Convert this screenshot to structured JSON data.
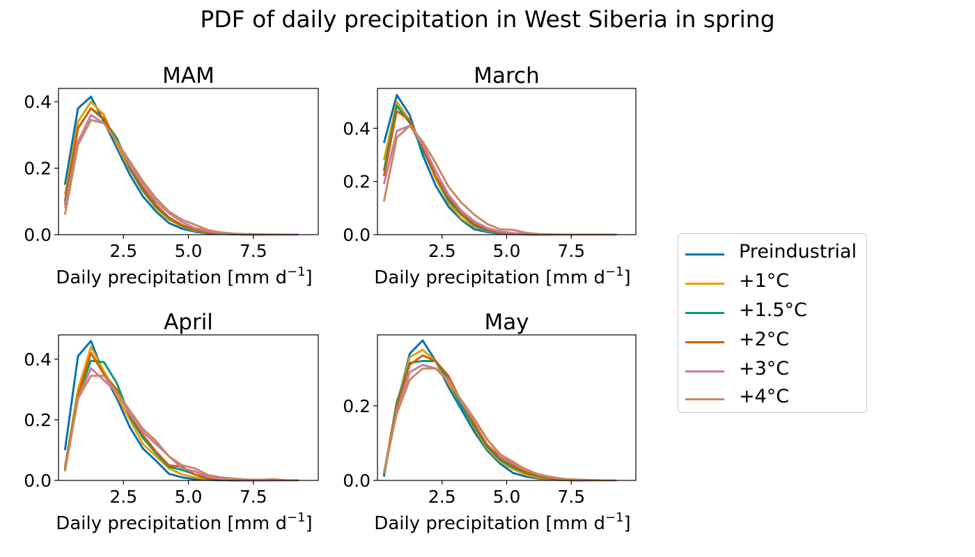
{
  "suptitle": "PDF of daily precipitation in West Siberia in spring",
  "legend": {
    "items": [
      {
        "label": "Preindustrial",
        "color": "#0072b2"
      },
      {
        "label": "+1°C",
        "color": "#e69f00"
      },
      {
        "label": "+1.5°C",
        "color": "#009e73"
      },
      {
        "label": "+2°C",
        "color": "#d55e00"
      },
      {
        "label": "+3°C",
        "color": "#cc79a7"
      },
      {
        "label": "+4°C",
        "color": "#c8895e"
      }
    ]
  },
  "chart_data": [
    {
      "type": "line",
      "title": "MAM",
      "xlabel": "Daily precipitation [mm d",
      "xlabel_sup": "−1",
      "xlabel_end": "]",
      "xlim": [
        0,
        10
      ],
      "ylim": [
        0,
        0.44
      ],
      "xticks": [
        2.5,
        5.0,
        7.5
      ],
      "xtick_labels": [
        "2.5",
        "5.0",
        "7.5"
      ],
      "yticks": [
        0,
        0.2,
        0.4
      ],
      "ytick_labels": [
        "0.0",
        "0.2",
        "0.4"
      ],
      "x": [
        0.25,
        0.75,
        1.25,
        1.75,
        2.25,
        2.75,
        3.25,
        3.75,
        4.25,
        4.75,
        5.25,
        5.75,
        6.25,
        6.75,
        7.25,
        7.75,
        8.25,
        8.75,
        9.25
      ],
      "series": [
        {
          "name": "Preindustrial",
          "values": [
            0.15,
            0.38,
            0.415,
            0.34,
            0.26,
            0.18,
            0.115,
            0.07,
            0.035,
            0.018,
            0.009,
            0.004,
            0.002,
            0.001,
            0.0005,
            0.0002,
            0.0001,
            0.0,
            0.0
          ]
        },
        {
          "name": "+1°C",
          "values": [
            0.12,
            0.34,
            0.4,
            0.36,
            0.27,
            0.195,
            0.13,
            0.08,
            0.045,
            0.025,
            0.012,
            0.006,
            0.003,
            0.0015,
            0.0007,
            0.0003,
            0.0001,
            0.0,
            0.0
          ]
        },
        {
          "name": "+1.5°C",
          "values": [
            0.1,
            0.32,
            0.38,
            0.345,
            0.29,
            0.2,
            0.135,
            0.085,
            0.05,
            0.027,
            0.014,
            0.007,
            0.003,
            0.0015,
            0.0007,
            0.0003,
            0.0001,
            0.0,
            0.0
          ]
        },
        {
          "name": "+2°C",
          "values": [
            0.09,
            0.32,
            0.38,
            0.35,
            0.28,
            0.205,
            0.14,
            0.09,
            0.052,
            0.029,
            0.015,
            0.008,
            0.004,
            0.002,
            0.0008,
            0.0003,
            0.0001,
            0.0,
            0.0
          ]
        },
        {
          "name": "+3°C",
          "values": [
            0.08,
            0.28,
            0.36,
            0.335,
            0.28,
            0.21,
            0.15,
            0.1,
            0.065,
            0.038,
            0.02,
            0.011,
            0.005,
            0.002,
            0.001,
            0.0004,
            0.0002,
            0.0,
            0.0
          ]
        },
        {
          "name": "+4°C",
          "values": [
            0.06,
            0.27,
            0.345,
            0.335,
            0.28,
            0.22,
            0.16,
            0.11,
            0.07,
            0.045,
            0.03,
            0.014,
            0.007,
            0.003,
            0.0015,
            0.0006,
            0.0002,
            0.0001,
            0.0
          ]
        }
      ]
    },
    {
      "type": "line",
      "title": "March",
      "xlabel": "Daily precipitation [mm d",
      "xlabel_sup": "−1",
      "xlabel_end": "]",
      "xlim": [
        0,
        10
      ],
      "ylim": [
        0,
        0.55
      ],
      "xticks": [
        2.5,
        5.0,
        7.5
      ],
      "xtick_labels": [
        "2.5",
        "5.0",
        "7.5"
      ],
      "yticks": [
        0,
        0.2,
        0.4
      ],
      "ytick_labels": [
        "0.0",
        "0.2",
        "0.4"
      ],
      "x": [
        0.25,
        0.75,
        1.25,
        1.75,
        2.25,
        2.75,
        3.25,
        3.75,
        4.25,
        4.75,
        5.25,
        5.75,
        6.25,
        6.75,
        7.25,
        7.75,
        8.25,
        8.75,
        9.25
      ],
      "series": [
        {
          "name": "Preindustrial",
          "values": [
            0.345,
            0.525,
            0.45,
            0.3,
            0.185,
            0.105,
            0.055,
            0.02,
            0.01,
            0.004,
            0.002,
            0.001,
            0.0,
            0.0,
            0.0,
            0.0,
            0.0,
            0.0,
            0.0
          ]
        },
        {
          "name": "+1°C",
          "values": [
            0.28,
            0.5,
            0.43,
            0.33,
            0.21,
            0.12,
            0.06,
            0.03,
            0.014,
            0.006,
            0.003,
            0.001,
            0.0,
            0.0,
            0.0,
            0.0,
            0.0,
            0.0,
            0.0
          ]
        },
        {
          "name": "+1.5°C",
          "values": [
            0.24,
            0.485,
            0.42,
            0.32,
            0.22,
            0.13,
            0.075,
            0.035,
            0.016,
            0.007,
            0.003,
            0.001,
            0.0,
            0.0,
            0.0,
            0.0,
            0.0,
            0.0,
            0.0
          ]
        },
        {
          "name": "+2°C",
          "values": [
            0.22,
            0.465,
            0.43,
            0.33,
            0.22,
            0.14,
            0.08,
            0.04,
            0.02,
            0.009,
            0.004,
            0.002,
            0.0005,
            0.0,
            0.0,
            0.0,
            0.0,
            0.0,
            0.0
          ]
        },
        {
          "name": "+3°C",
          "values": [
            0.19,
            0.39,
            0.41,
            0.34,
            0.24,
            0.15,
            0.09,
            0.05,
            0.025,
            0.012,
            0.006,
            0.003,
            0.001,
            0.0,
            0.0,
            0.0,
            0.0,
            0.0,
            0.0
          ]
        },
        {
          "name": "+4°C",
          "values": [
            0.125,
            0.365,
            0.41,
            0.35,
            0.27,
            0.18,
            0.12,
            0.075,
            0.04,
            0.02,
            0.018,
            0.007,
            0.002,
            0.001,
            0.0,
            0.0,
            0.0,
            0.0,
            0.0
          ]
        }
      ]
    },
    {
      "type": "line",
      "title": "April",
      "xlabel": "Daily precipitation [mm d",
      "xlabel_sup": "−1",
      "xlabel_end": "]",
      "xlim": [
        0,
        10
      ],
      "ylim": [
        0,
        0.48
      ],
      "xticks": [
        2.5,
        5.0,
        7.5
      ],
      "xtick_labels": [
        "2.5",
        "5.0",
        "7.5"
      ],
      "yticks": [
        0,
        0.2,
        0.4
      ],
      "ytick_labels": [
        "0.0",
        "0.2",
        "0.4"
      ],
      "x": [
        0.25,
        0.75,
        1.25,
        1.75,
        2.25,
        2.75,
        3.25,
        3.75,
        4.25,
        4.75,
        5.25,
        5.75,
        6.25,
        6.75,
        7.25,
        7.75,
        8.25,
        8.75,
        9.25
      ],
      "series": [
        {
          "name": "Preindustrial",
          "values": [
            0.1,
            0.41,
            0.46,
            0.35,
            0.27,
            0.175,
            0.105,
            0.065,
            0.022,
            0.01,
            0.004,
            0.002,
            0.001,
            0.0,
            0.0,
            0.0,
            0.0,
            0.0,
            0.0
          ]
        },
        {
          "name": "+1°C",
          "values": [
            0.045,
            0.3,
            0.44,
            0.36,
            0.28,
            0.2,
            0.12,
            0.08,
            0.04,
            0.02,
            0.01,
            0.004,
            0.002,
            0.001,
            0.0,
            0.0,
            0.0,
            0.0,
            0.0
          ]
        },
        {
          "name": "+1.5°C",
          "values": [
            0.04,
            0.28,
            0.395,
            0.39,
            0.32,
            0.21,
            0.14,
            0.09,
            0.045,
            0.035,
            0.02,
            0.005,
            0.002,
            0.001,
            0.0,
            0.0,
            0.0,
            0.0,
            0.0
          ]
        },
        {
          "name": "+2°C",
          "values": [
            0.035,
            0.28,
            0.42,
            0.35,
            0.3,
            0.215,
            0.15,
            0.095,
            0.05,
            0.045,
            0.02,
            0.008,
            0.004,
            0.002,
            0.001,
            0.0,
            0.0,
            0.0,
            0.0
          ]
        },
        {
          "name": "+3°C",
          "values": [
            0.03,
            0.27,
            0.37,
            0.33,
            0.29,
            0.22,
            0.16,
            0.12,
            0.08,
            0.04,
            0.03,
            0.012,
            0.006,
            0.003,
            0.001,
            0.0005,
            0.0,
            0.0,
            0.0
          ]
        },
        {
          "name": "+4°C",
          "values": [
            0.03,
            0.27,
            0.345,
            0.345,
            0.29,
            0.23,
            0.17,
            0.13,
            0.08,
            0.05,
            0.04,
            0.018,
            0.01,
            0.006,
            0.003,
            0.002,
            0.004,
            0.001,
            0.0
          ]
        }
      ]
    },
    {
      "type": "line",
      "title": "May",
      "xlabel": "Daily precipitation [mm d",
      "xlabel_sup": "−1",
      "xlabel_end": "]",
      "xlim": [
        0,
        10
      ],
      "ylim": [
        0,
        0.39
      ],
      "xticks": [
        2.5,
        5.0,
        7.5
      ],
      "xtick_labels": [
        "2.5",
        "5.0",
        "7.5"
      ],
      "yticks": [
        0,
        0.2
      ],
      "ytick_labels": [
        "0.0",
        "0.2"
      ],
      "x": [
        0.25,
        0.75,
        1.25,
        1.75,
        2.25,
        2.75,
        3.25,
        3.75,
        4.25,
        4.75,
        5.25,
        5.75,
        6.25,
        6.75,
        7.25,
        7.75,
        8.25,
        8.75,
        9.25
      ],
      "series": [
        {
          "name": "Preindustrial",
          "values": [
            0.01,
            0.2,
            0.34,
            0.375,
            0.32,
            0.25,
            0.19,
            0.13,
            0.08,
            0.045,
            0.02,
            0.01,
            0.005,
            0.002,
            0.001,
            0.0,
            0.0,
            0.0,
            0.0
          ]
        },
        {
          "name": "+1°C",
          "values": [
            0.015,
            0.205,
            0.33,
            0.35,
            0.32,
            0.26,
            0.2,
            0.14,
            0.085,
            0.05,
            0.03,
            0.015,
            0.007,
            0.003,
            0.001,
            0.0,
            0.0,
            0.0,
            0.0
          ]
        },
        {
          "name": "+1.5°C",
          "values": [
            0.015,
            0.21,
            0.315,
            0.32,
            0.32,
            0.27,
            0.2,
            0.145,
            0.09,
            0.055,
            0.035,
            0.02,
            0.01,
            0.004,
            0.002,
            0.0005,
            0.0,
            0.0,
            0.0
          ]
        },
        {
          "name": "+2°C",
          "values": [
            0.02,
            0.2,
            0.31,
            0.335,
            0.32,
            0.28,
            0.21,
            0.15,
            0.095,
            0.06,
            0.04,
            0.022,
            0.012,
            0.005,
            0.002,
            0.001,
            0.0,
            0.0,
            0.0
          ]
        },
        {
          "name": "+3°C",
          "values": [
            0.02,
            0.185,
            0.29,
            0.31,
            0.3,
            0.27,
            0.21,
            0.16,
            0.11,
            0.065,
            0.045,
            0.03,
            0.015,
            0.008,
            0.003,
            0.001,
            0.0,
            0.0,
            0.0
          ]
        },
        {
          "name": "+4°C",
          "values": [
            0.02,
            0.18,
            0.27,
            0.3,
            0.3,
            0.265,
            0.215,
            0.165,
            0.11,
            0.07,
            0.05,
            0.028,
            0.016,
            0.009,
            0.004,
            0.002,
            0.001,
            0.0,
            0.0
          ]
        }
      ]
    }
  ]
}
